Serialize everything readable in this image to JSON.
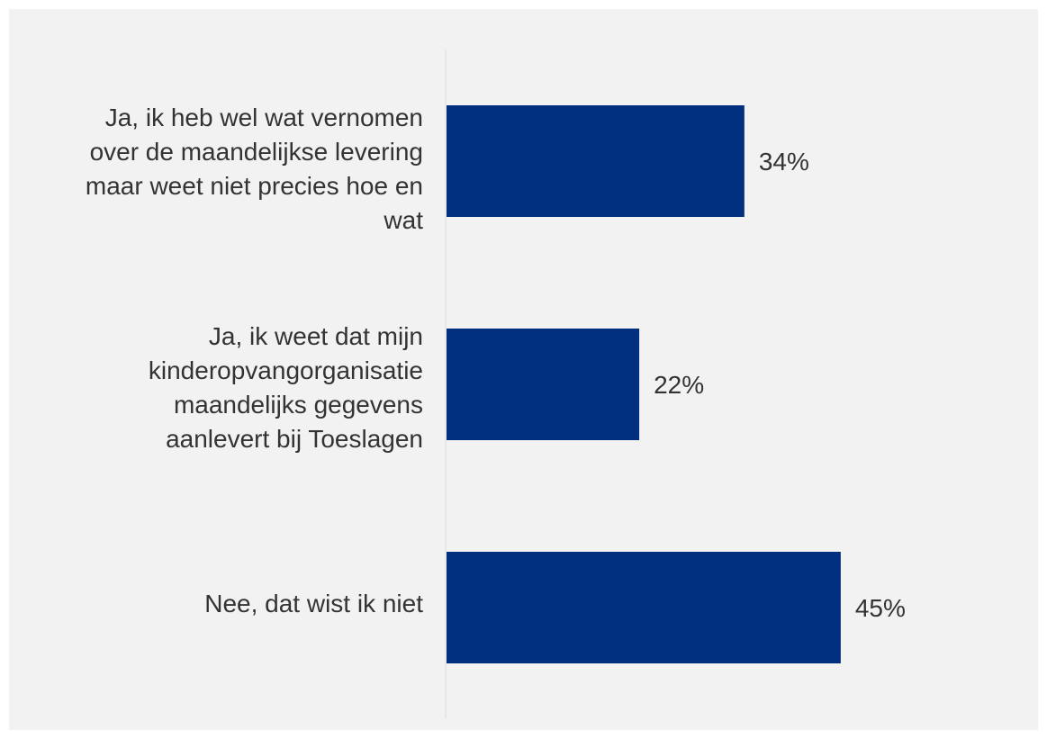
{
  "chart_data": {
    "type": "bar",
    "orientation": "horizontal",
    "categories": [
      "Ja, ik heb wel wat vernomen\nover de maandelijkse levering\nmaar weet niet precies hoe en\nwat",
      "Ja, ik weet dat mijn\nkinderopvangorganisatie\nmaandelijks gegevens\naanlevert bij Toeslagen",
      "Nee, dat wist ik niet"
    ],
    "values": [
      34,
      22,
      45
    ],
    "value_labels": [
      "34%",
      "22%",
      "45%"
    ],
    "unit": "%",
    "xlim": [
      0,
      63
    ],
    "grid": false,
    "legend": "none",
    "colors": {
      "bar": "#002f7d",
      "background": "#f2f2f2",
      "text": "#333333",
      "axis": "#d9d9d9"
    }
  }
}
